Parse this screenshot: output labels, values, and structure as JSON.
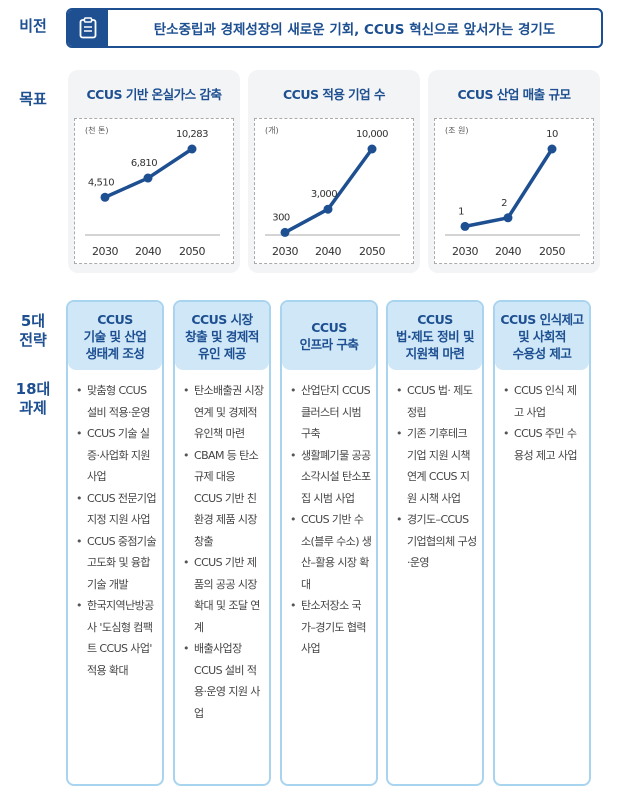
{
  "labels": {
    "vision": "비전",
    "goal": "목표",
    "strategy": "5대\n전략",
    "tasks": "18대\n과제"
  },
  "vision": {
    "text": "탄소중립과 경제성장의 새로운 기회, CCUS 혁신으로 앞서가는 경기도",
    "icon": "clipboard-icon"
  },
  "colors": {
    "primary": "#1d4f91",
    "header_bg": "#cfe7f7",
    "border": "#a9d4ef"
  },
  "chart_data": [
    {
      "type": "line",
      "title": "CCUS 기반 온실가스 감축",
      "unit": "(천 톤)",
      "categories": [
        "2030",
        "2040",
        "2050"
      ],
      "values": [
        4510,
        6810,
        10283
      ],
      "labels": [
        "4,510",
        "6,810",
        "10,283"
      ]
    },
    {
      "type": "line",
      "title": "CCUS 적용 기업 수",
      "unit": "(개)",
      "categories": [
        "2030",
        "2040",
        "2050"
      ],
      "values": [
        300,
        3000,
        10000
      ],
      "labels": [
        "300",
        "3,000",
        "10,000"
      ]
    },
    {
      "type": "line",
      "title": "CCUS 산업 매출 규모",
      "unit": "(조 원)",
      "categories": [
        "2030",
        "2040",
        "2050"
      ],
      "values": [
        1,
        2,
        10
      ],
      "labels": [
        "1",
        "2",
        "10"
      ]
    }
  ],
  "strategies": [
    {
      "title": "CCUS\n기술 및 산업\n생태계 조성",
      "items": [
        "맞춤형 CCUS 설비 적용·운영",
        "CCUS 기술 실증·사업화 지원 사업",
        "CCUS 전문기업 지정 지원 사업",
        "CCUS 중점기술 고도화 및 융합기술 개발",
        "한국지역난방공사 '도심형 컴팩트 CCUS 사업' 적용 확대"
      ]
    },
    {
      "title": "CCUS 시장\n창출 및 경제적\n유인 제공",
      "items": [
        "탄소배출권 시장 연계 및 경제적 유인책 마련",
        "CBAM 등 탄소규제 대응 CCUS 기반 친환경 제품 시장 창출",
        "CCUS 기반 제품의 공공 시장 확대 및 조달 연계",
        "배출사업장 CCUS 설비 적용·운영 지원 사업"
      ]
    },
    {
      "title": "CCUS\n인프라 구축",
      "items": [
        "산업단지 CCUS 클러스터 시범 구축",
        "생활폐기물 공공소각시설 탄소포집 시범 사업",
        "CCUS 기반 수소(블루 수소) 생산–활용 시장 확대",
        "탄소저장소 국가–경기도 협력 사업"
      ]
    },
    {
      "title": "CCUS\n법·제도 정비 및\n지원책 마련",
      "items": [
        "CCUS 법· 제도 정립",
        "기존 기후테크 기업 지원 시책 연계 CCUS 지원 시책 사업",
        "경기도–CCUS 기업협의체 구성·운영"
      ]
    },
    {
      "title": "CCUS 인식제고\n및 사회적\n수용성 제고",
      "items": [
        "CCUS 인식 제고 사업",
        "CCUS 주민 수용성 제고 사업"
      ]
    }
  ]
}
